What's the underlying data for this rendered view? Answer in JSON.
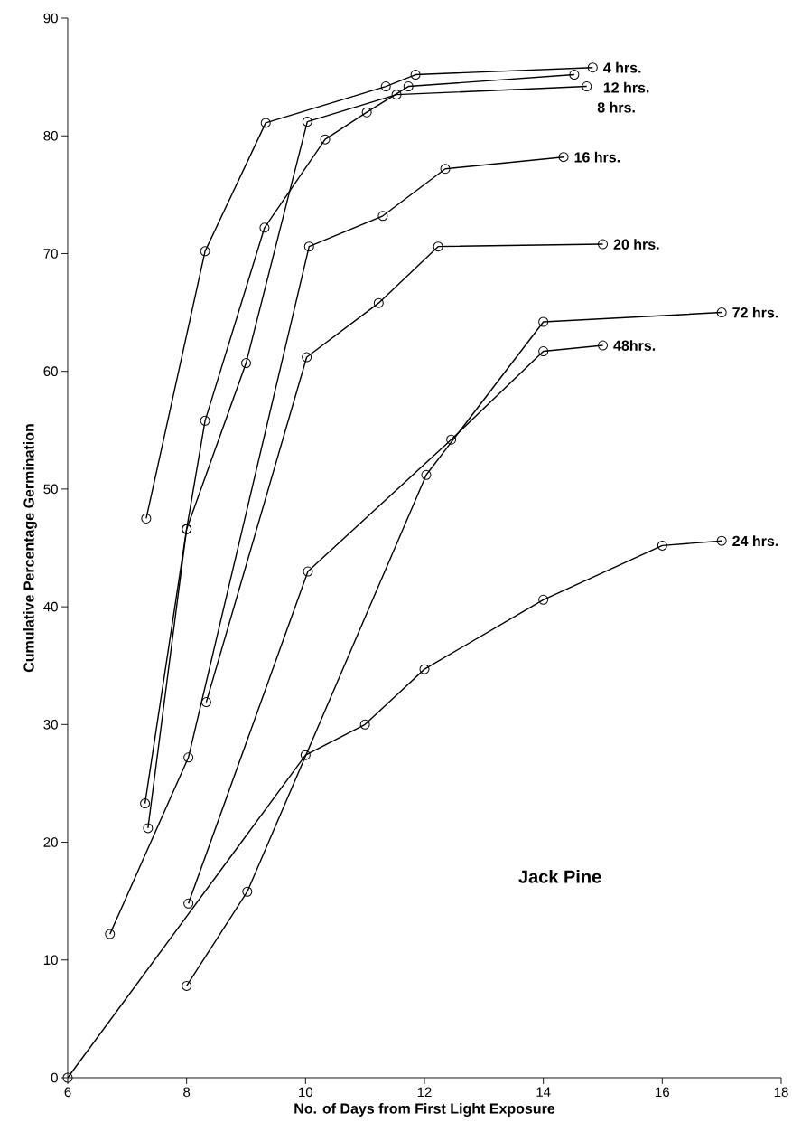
{
  "chart_data": {
    "type": "line",
    "xlabel": "No. of Days from First Light Exposure",
    "ylabel": "Cumulative Percentage Germination",
    "annotations": [
      "Jack Pine"
    ],
    "xlim": [
      6,
      18
    ],
    "ylim": [
      0,
      90
    ],
    "xticks": [
      6,
      8,
      10,
      12,
      14,
      16,
      18
    ],
    "yticks": [
      0,
      10,
      20,
      30,
      40,
      50,
      60,
      70,
      80,
      90
    ],
    "marker": "circle",
    "line_style": "solid",
    "series": [
      {
        "name": "4 hrs.",
        "color": "#000000",
        "x": [
          7.32,
          8.31,
          9.33,
          11.35,
          11.85,
          14.83
        ],
        "values": [
          47.5,
          70.2,
          81.1,
          84.2,
          85.2,
          85.8
        ]
      },
      {
        "name": "12 hrs.",
        "color": "#000000",
        "x": [
          7.3,
          8.0,
          8.31,
          9.31,
          10.33,
          11.03,
          11.73,
          14.52
        ],
        "values": [
          23.3,
          46.6,
          55.8,
          72.2,
          79.7,
          82.0,
          84.2,
          85.2
        ]
      },
      {
        "name": "8 hrs.",
        "color": "#000000",
        "x": [
          7.35,
          8.0,
          9.0,
          10.03,
          11.53,
          14.73
        ],
        "values": [
          21.2,
          46.6,
          60.7,
          81.2,
          83.5,
          84.2
        ]
      },
      {
        "name": "16 hrs.",
        "color": "#000000",
        "x": [
          6.71,
          8.03,
          10.06,
          11.3,
          12.35,
          14.34
        ],
        "values": [
          12.2,
          27.2,
          70.6,
          73.2,
          77.2,
          78.2
        ]
      },
      {
        "name": "20 hrs.",
        "color": "#000000",
        "x": [
          8.33,
          10.02,
          11.23,
          12.23,
          15.0
        ],
        "values": [
          31.9,
          61.2,
          65.8,
          70.6,
          70.8
        ]
      },
      {
        "name": "72 hrs.",
        "color": "#000000",
        "x": [
          8.0,
          9.02,
          12.03,
          14.0,
          17.0
        ],
        "values": [
          7.8,
          15.8,
          51.2,
          64.2,
          65.0
        ]
      },
      {
        "name": "48hrs.",
        "color": "#000000",
        "x": [
          8.03,
          10.04,
          12.45,
          14.0,
          15.0
        ],
        "values": [
          14.8,
          43.0,
          54.2,
          61.7,
          62.2
        ]
      },
      {
        "name": "24 hrs.",
        "color": "#000000",
        "x": [
          6.0,
          10.0,
          11.0,
          12.0,
          14.0,
          16.0,
          17.0
        ],
        "values": [
          0.0,
          27.4,
          30.0,
          34.7,
          40.6,
          45.2,
          45.6
        ]
      }
    ]
  }
}
